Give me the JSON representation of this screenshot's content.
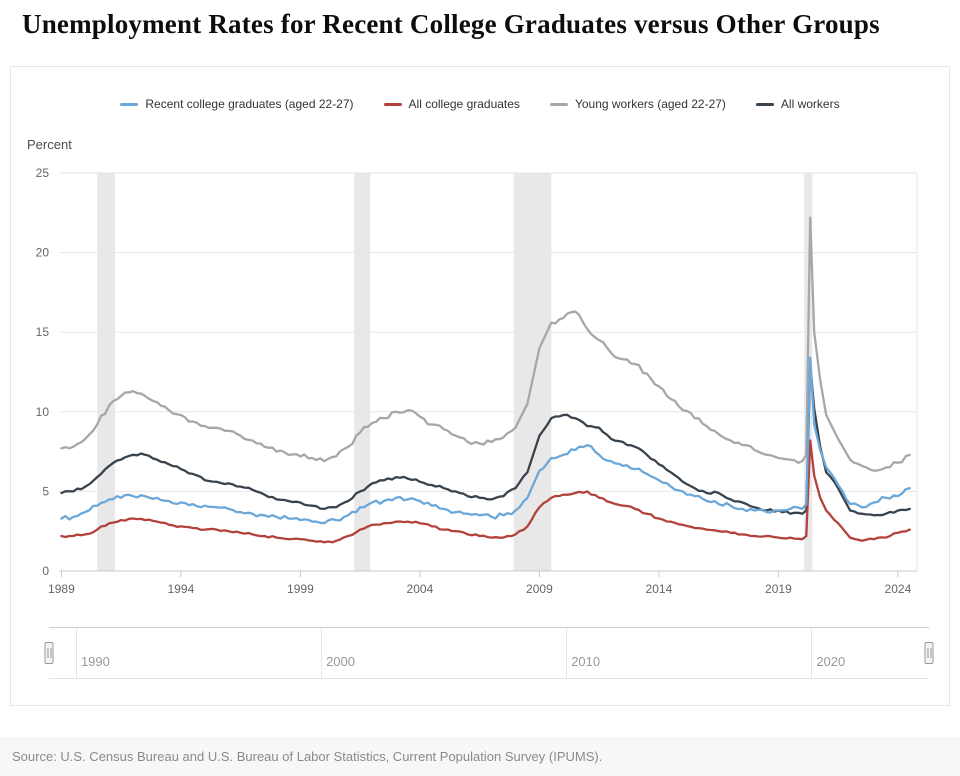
{
  "page": {
    "title": "Unemployment Rates for Recent College Graduates versus Other Groups",
    "source": "Source: U.S. Census Bureau and U.S. Bureau of Labor Statistics, Current Population Survey (IPUMS)."
  },
  "chart_data": {
    "type": "line",
    "title": "Unemployment Rates for Recent College Graduates versus Other Groups",
    "xlabel": "",
    "ylabel": "Percent",
    "ylim": [
      0,
      25
    ],
    "xlim": [
      1988.9,
      2024.8
    ],
    "yticks": [
      0,
      5,
      10,
      15,
      20,
      25
    ],
    "xticks": [
      1989,
      1994,
      1999,
      2004,
      2009,
      2014,
      2019,
      2024
    ],
    "grid": true,
    "legend_position": "top",
    "band_color": "#e8e8e8",
    "recession_bands": [
      [
        1990.5,
        1991.25
      ],
      [
        2001.25,
        2001.92
      ],
      [
        2007.92,
        2009.5
      ],
      [
        2020.08,
        2020.42
      ]
    ],
    "x": [
      1989,
      1989.5,
      1990,
      1990.5,
      1991,
      1991.5,
      1992,
      1992.5,
      1993,
      1993.5,
      1994,
      1994.5,
      1995,
      1995.5,
      1996,
      1996.5,
      1997,
      1997.5,
      1998,
      1998.5,
      1999,
      1999.5,
      2000,
      2000.5,
      2001,
      2001.5,
      2002,
      2002.5,
      2003,
      2003.5,
      2004,
      2004.5,
      2005,
      2005.5,
      2006,
      2006.5,
      2007,
      2007.5,
      2008,
      2008.5,
      2009,
      2009.5,
      2010,
      2010.5,
      2011,
      2011.5,
      2012,
      2012.5,
      2013,
      2013.5,
      2014,
      2014.5,
      2015,
      2015.5,
      2016,
      2016.5,
      2017,
      2017.5,
      2018,
      2018.5,
      2019,
      2019.5,
      2020,
      2020.17,
      2020.33,
      2020.5,
      2020.75,
      2021,
      2021.5,
      2022,
      2022.5,
      2023,
      2023.5,
      2024,
      2024.5
    ],
    "series": [
      {
        "key": "recent-college-graduates",
        "name": "Recent college graduates (aged 22-27)",
        "color": "#6BA7D8",
        "values": [
          3.3,
          3.4,
          3.7,
          4.1,
          4.5,
          4.6,
          4.7,
          4.7,
          4.6,
          4.4,
          4.3,
          4.2,
          4.1,
          4.0,
          3.9,
          3.7,
          3.6,
          3.5,
          3.4,
          3.3,
          3.2,
          3.1,
          3.0,
          3.2,
          3.5,
          4.0,
          4.3,
          4.4,
          4.6,
          4.5,
          4.4,
          4.1,
          3.9,
          3.7,
          3.6,
          3.5,
          3.4,
          3.5,
          3.8,
          4.6,
          6.3,
          7.1,
          7.3,
          7.6,
          7.9,
          7.3,
          6.9,
          6.6,
          6.4,
          6.1,
          5.7,
          5.3,
          5.0,
          4.7,
          4.4,
          4.2,
          4.1,
          3.9,
          3.8,
          3.7,
          3.8,
          3.9,
          3.9,
          4.2,
          13.4,
          9.2,
          7.6,
          6.5,
          5.4,
          4.2,
          4.0,
          4.3,
          4.6,
          4.7,
          5.2
        ]
      },
      {
        "key": "all-college-graduates",
        "name": "All college graduates",
        "color": "#B2423B",
        "values": [
          2.2,
          2.2,
          2.3,
          2.6,
          3.0,
          3.2,
          3.3,
          3.2,
          3.1,
          2.9,
          2.8,
          2.7,
          2.6,
          2.6,
          2.5,
          2.4,
          2.3,
          2.2,
          2.1,
          2.0,
          2.0,
          1.9,
          1.8,
          1.9,
          2.2,
          2.6,
          2.9,
          3.0,
          3.1,
          3.1,
          3.0,
          2.8,
          2.6,
          2.5,
          2.3,
          2.2,
          2.1,
          2.1,
          2.3,
          2.8,
          4.0,
          4.6,
          4.8,
          4.9,
          5.0,
          4.6,
          4.3,
          4.1,
          3.9,
          3.6,
          3.3,
          3.1,
          2.9,
          2.7,
          2.6,
          2.5,
          2.4,
          2.3,
          2.2,
          2.2,
          2.1,
          2.1,
          2.0,
          2.2,
          8.2,
          6.0,
          4.6,
          3.8,
          3.0,
          2.1,
          1.9,
          2.0,
          2.1,
          2.4,
          2.6
        ]
      },
      {
        "key": "young-workers",
        "name": "Young workers (aged 22-27)",
        "color": "#A7A7A7",
        "values": [
          7.7,
          7.8,
          8.3,
          9.2,
          10.4,
          11.0,
          11.3,
          11.0,
          10.6,
          10.1,
          9.8,
          9.4,
          9.1,
          9.0,
          8.8,
          8.5,
          8.2,
          7.8,
          7.5,
          7.3,
          7.2,
          7.1,
          6.9,
          7.2,
          7.8,
          8.7,
          9.3,
          9.6,
          10.0,
          10.1,
          9.7,
          9.2,
          8.9,
          8.5,
          8.1,
          8.0,
          8.1,
          8.4,
          9.0,
          10.5,
          14.0,
          15.6,
          15.9,
          16.3,
          15.2,
          14.5,
          13.7,
          13.3,
          13.0,
          12.4,
          11.6,
          10.8,
          10.1,
          9.6,
          9.1,
          8.6,
          8.2,
          7.9,
          7.6,
          7.3,
          7.1,
          7.0,
          6.9,
          7.3,
          22.2,
          15.0,
          12.0,
          9.8,
          8.3,
          7.0,
          6.6,
          6.3,
          6.5,
          6.8,
          7.3
        ]
      },
      {
        "key": "all-workers",
        "name": "All workers",
        "color": "#39434D",
        "values": [
          4.9,
          5.0,
          5.3,
          5.9,
          6.6,
          7.0,
          7.3,
          7.3,
          7.0,
          6.7,
          6.4,
          6.1,
          5.7,
          5.6,
          5.5,
          5.3,
          5.1,
          4.8,
          4.5,
          4.4,
          4.3,
          4.1,
          3.9,
          4.0,
          4.4,
          5.0,
          5.5,
          5.7,
          5.9,
          5.8,
          5.6,
          5.4,
          5.2,
          5.0,
          4.7,
          4.6,
          4.5,
          4.7,
          5.2,
          6.2,
          8.5,
          9.6,
          9.8,
          9.6,
          9.1,
          9.0,
          8.3,
          8.1,
          7.8,
          7.3,
          6.7,
          6.2,
          5.6,
          5.2,
          4.9,
          4.9,
          4.5,
          4.3,
          4.0,
          3.8,
          3.8,
          3.6,
          3.6,
          3.8,
          13.0,
          10.2,
          7.8,
          6.2,
          5.2,
          3.8,
          3.6,
          3.5,
          3.6,
          3.8,
          3.9
        ]
      }
    ],
    "navigator": {
      "ticks": [
        1990,
        2000,
        2010,
        2020
      ]
    }
  }
}
